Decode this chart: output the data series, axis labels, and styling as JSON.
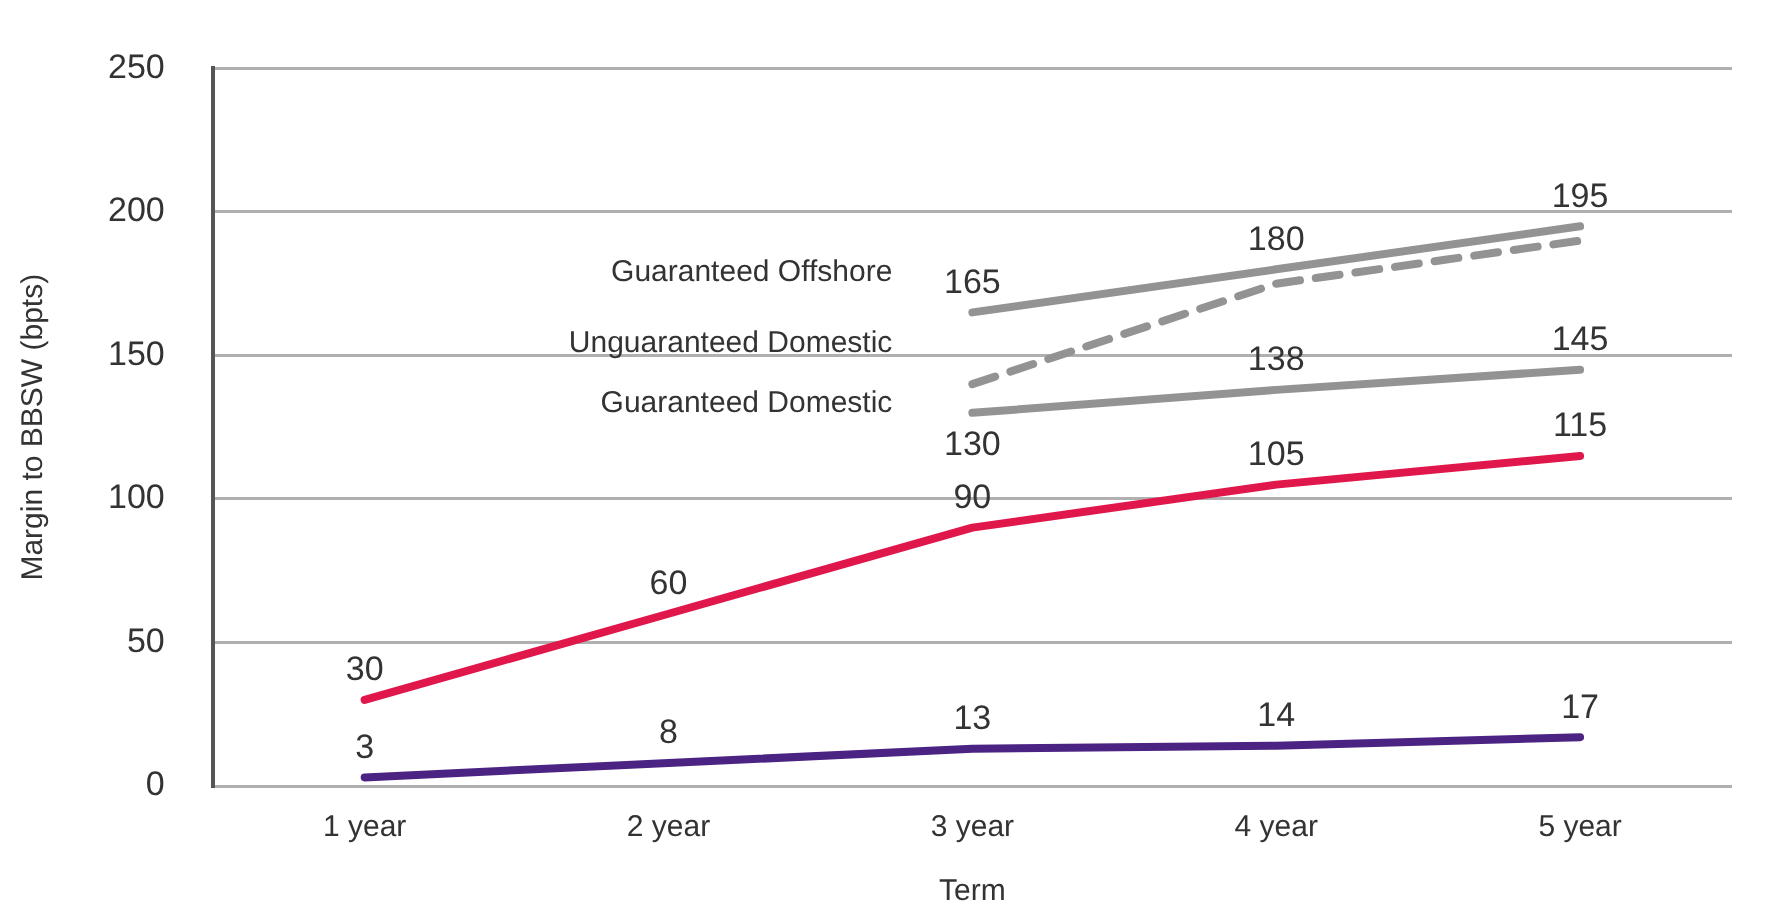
{
  "chart_data": {
    "type": "line",
    "xlabel": "Term",
    "ylabel": "Margin to BBSW (bpts)",
    "categories": [
      "1 year",
      "2 year",
      "3 year",
      "4 year",
      "5 year"
    ],
    "series": [
      {
        "name": "Guaranteed Offshore",
        "color": "#939393",
        "values": [
          null,
          null,
          165,
          180,
          195
        ],
        "value_labels": [
          null,
          null,
          "165",
          "180",
          "195"
        ]
      },
      {
        "name": "Unguaranteed Domestic",
        "color": "#939393",
        "line_style": "dashed",
        "values": [
          null,
          null,
          140,
          175,
          190
        ]
      },
      {
        "name": "Guaranteed Domestic",
        "color": "#939393",
        "values": [
          null,
          null,
          130,
          138,
          145
        ],
        "value_labels": [
          null,
          null,
          "130",
          "138",
          "145"
        ]
      },
      {
        "color": "#e0174b",
        "values": [
          30,
          60,
          90,
          105,
          115
        ],
        "value_labels": [
          "30",
          "60",
          "90",
          "105",
          "115"
        ]
      },
      {
        "color": "#4b2383",
        "values": [
          3,
          8,
          13,
          14,
          17
        ],
        "value_labels": [
          "3",
          "8",
          "13",
          "14",
          "17"
        ]
      }
    ],
    "ylim": [
      0,
      250
    ],
    "yticks": [
      0,
      50,
      100,
      150,
      200,
      250
    ],
    "grid": "y",
    "legend": false,
    "marker": "none"
  }
}
